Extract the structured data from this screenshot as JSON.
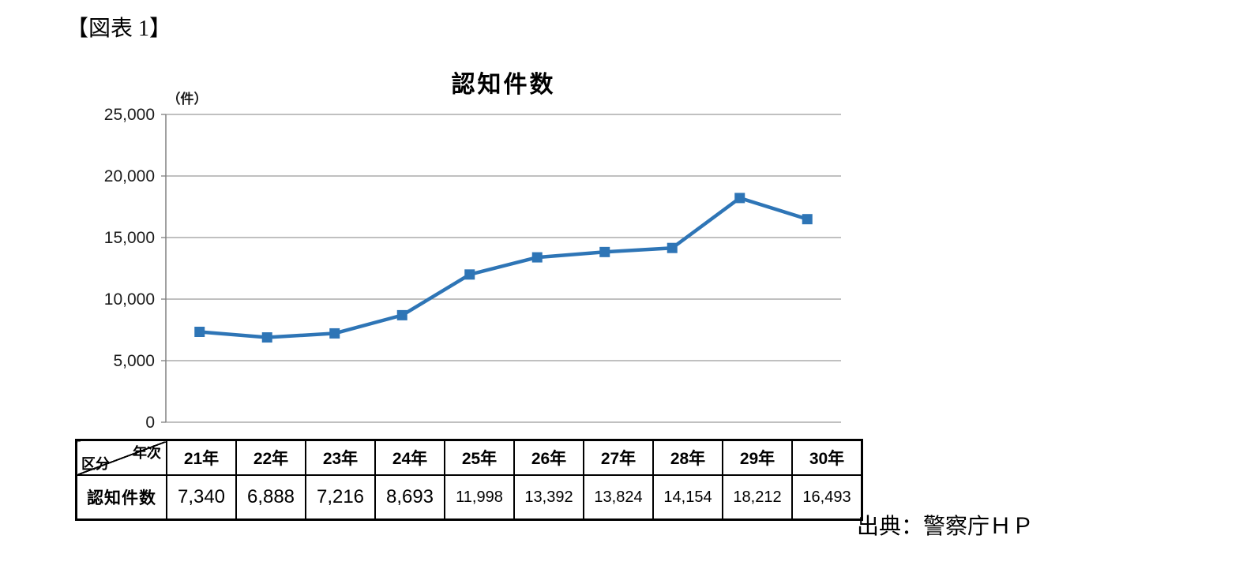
{
  "page": {
    "figure_label": "【図表 1】",
    "source": "出典：警察庁ＨＰ"
  },
  "chart_data": {
    "type": "line",
    "title": "認知件数",
    "unit_label": "（件）",
    "categories": [
      "21年",
      "22年",
      "23年",
      "24年",
      "25年",
      "26年",
      "27年",
      "28年",
      "29年",
      "30年"
    ],
    "values": [
      7340,
      6888,
      7216,
      8693,
      11998,
      13392,
      13824,
      14154,
      18212,
      16493
    ],
    "ylim": [
      0,
      25000
    ],
    "ytick_interval": 5000,
    "ytick_labels": [
      "0",
      "5,000",
      "10,000",
      "15,000",
      "20,000",
      "25,000"
    ],
    "line_color": "#2E75B6",
    "marker": "square",
    "grid": true,
    "legend": "none"
  },
  "table": {
    "corner": {
      "top_right": "年次",
      "bottom_left": "区分"
    },
    "row_header": "認知件数",
    "columns": [
      "21年",
      "22年",
      "23年",
      "24年",
      "25年",
      "26年",
      "27年",
      "28年",
      "29年",
      "30年"
    ],
    "values": [
      "7,340",
      "6,888",
      "7,216",
      "8,693",
      "11,998",
      "13,392",
      "13,824",
      "14,154",
      "18,212",
      "16,493"
    ]
  }
}
